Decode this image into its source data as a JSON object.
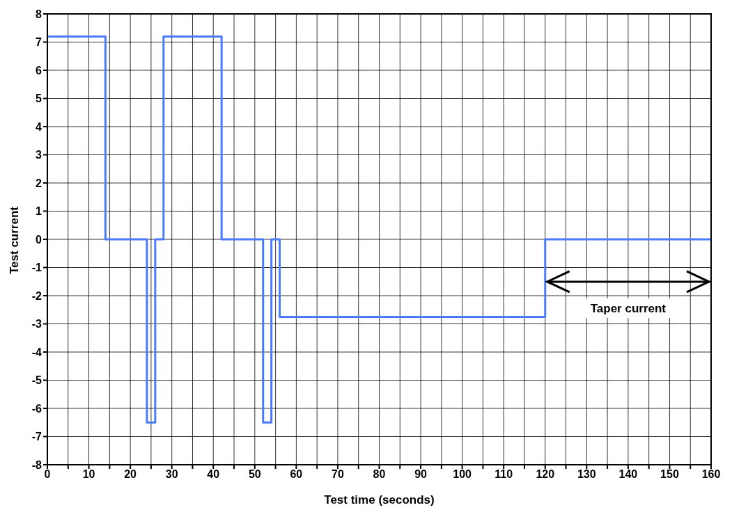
{
  "chart_data": {
    "type": "step",
    "xlabel": "Test time (seconds)",
    "ylabel": "Test current",
    "x": [
      0,
      14,
      24,
      26,
      28,
      42,
      52,
      54,
      56,
      120,
      160
    ],
    "series": [
      {
        "color": "#4a7bff",
        "values": [
          7.2,
          0,
          -6.5,
          0,
          7.2,
          0,
          -6.5,
          0,
          -2.75,
          0,
          0
        ]
      }
    ],
    "xlim": [
      0,
      160
    ],
    "xticks": [
      0,
      {
        "value": 5,
        "label": null
      },
      10,
      {
        "value": 15,
        "label": null
      },
      20,
      {
        "value": 25,
        "label": null
      },
      30,
      {
        "value": 35,
        "label": null
      },
      40,
      {
        "value": 45,
        "label": null
      },
      50,
      {
        "value": 55,
        "label": null
      },
      60,
      {
        "value": 65,
        "label": null
      },
      70,
      {
        "value": 75,
        "label": null
      },
      80,
      {
        "value": 85,
        "label": null
      },
      90,
      {
        "value": 95,
        "label": null
      },
      100,
      {
        "value": 105,
        "label": null
      },
      110,
      {
        "value": 115,
        "label": null
      },
      120,
      {
        "value": 125,
        "label": null
      },
      130,
      {
        "value": 135,
        "label": null
      },
      140,
      {
        "value": 145,
        "label": null
      },
      150,
      {
        "value": 155,
        "label": null
      },
      160
    ],
    "ylim": [
      -8,
      8
    ],
    "yticks": [
      -8,
      -7,
      -6,
      -5,
      -4,
      -3,
      -2,
      -1,
      0,
      1,
      2,
      3,
      4,
      5,
      6,
      7,
      8
    ],
    "grid": true,
    "marker": "none",
    "line_style": "solid",
    "legend": false,
    "annotations": [
      "Taper current"
    ]
  }
}
